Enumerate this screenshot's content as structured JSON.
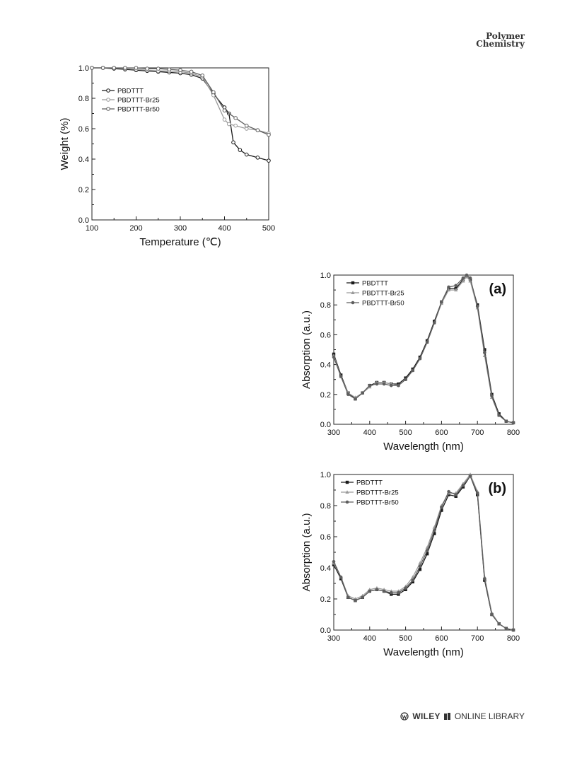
{
  "header": {
    "journal_line1": "Polymer",
    "journal_line2": "Chemistry"
  },
  "footer": {
    "wiley": "WILEY",
    "library": "ONLINE LIBRARY"
  },
  "colors": {
    "s1": "#1a1a1a",
    "s2": "#9a9a9a",
    "s3": "#5e5e5e"
  },
  "chart_data": [
    {
      "type": "line",
      "panel": "",
      "xlabel": "Temperature (℃)",
      "ylabel": "Weight (%)",
      "xlim": [
        100,
        500
      ],
      "ylim": [
        0.0,
        1.0
      ],
      "xticks": [
        "100",
        "200",
        "300",
        "400",
        "500"
      ],
      "yticks": [
        "0.0",
        "0.2",
        "0.4",
        "0.6",
        "0.8",
        "1.0"
      ],
      "legend_position": "upper-left",
      "marker": "open-circle",
      "series": [
        {
          "name": "PBDTTT",
          "x": [
            100,
            125,
            150,
            175,
            200,
            225,
            250,
            275,
            300,
            325,
            350,
            375,
            400,
            410,
            420,
            435,
            450,
            475,
            500
          ],
          "y": [
            1.0,
            1.0,
            0.995,
            0.99,
            0.985,
            0.98,
            0.975,
            0.97,
            0.965,
            0.955,
            0.93,
            0.83,
            0.74,
            0.7,
            0.51,
            0.46,
            0.43,
            0.41,
            0.39
          ]
        },
        {
          "name": "PBDTTT-Br25",
          "x": [
            100,
            125,
            150,
            175,
            200,
            225,
            250,
            275,
            300,
            325,
            350,
            375,
            400,
            410,
            425,
            450,
            475,
            500
          ],
          "y": [
            1.0,
            1.0,
            1.0,
            0.995,
            0.99,
            0.985,
            0.98,
            0.98,
            0.975,
            0.965,
            0.94,
            0.82,
            0.66,
            0.63,
            0.62,
            0.6,
            0.59,
            0.57
          ]
        },
        {
          "name": "PBDTTT-Br50",
          "x": [
            100,
            125,
            150,
            175,
            200,
            225,
            250,
            275,
            300,
            325,
            350,
            375,
            400,
            425,
            450,
            475,
            500
          ],
          "y": [
            1.0,
            1.0,
            1.0,
            1.0,
            1.0,
            0.995,
            0.995,
            0.99,
            0.985,
            0.975,
            0.95,
            0.84,
            0.72,
            0.67,
            0.62,
            0.59,
            0.56
          ]
        }
      ]
    },
    {
      "type": "line",
      "panel": "(a)",
      "xlabel": "Wavelength (nm)",
      "ylabel": "Absorption (a.u.)",
      "xlim": [
        300,
        800
      ],
      "ylim": [
        0.0,
        1.0
      ],
      "xticks": [
        "300",
        "400",
        "500",
        "600",
        "700",
        "800"
      ],
      "yticks": [
        "0.0",
        "0.2",
        "0.4",
        "0.6",
        "0.8",
        "1.0"
      ],
      "legend_position": "upper-left",
      "marker": "filled",
      "series": [
        {
          "name": "PBDTTT",
          "x": [
            300,
            320,
            340,
            360,
            380,
            400,
            420,
            440,
            460,
            480,
            500,
            520,
            540,
            560,
            580,
            600,
            620,
            640,
            660,
            670,
            680,
            700,
            720,
            740,
            760,
            780,
            800
          ],
          "y": [
            0.47,
            0.33,
            0.21,
            0.17,
            0.21,
            0.26,
            0.28,
            0.28,
            0.27,
            0.27,
            0.31,
            0.37,
            0.45,
            0.56,
            0.69,
            0.82,
            0.91,
            0.91,
            0.97,
            0.99,
            0.97,
            0.8,
            0.5,
            0.2,
            0.07,
            0.02,
            0.01
          ]
        },
        {
          "name": "PBDTTT-Br25",
          "x": [
            300,
            320,
            340,
            360,
            380,
            400,
            420,
            440,
            460,
            480,
            500,
            520,
            540,
            560,
            580,
            600,
            620,
            640,
            660,
            670,
            680,
            700,
            720,
            740,
            760,
            780,
            800
          ],
          "y": [
            0.46,
            0.32,
            0.21,
            0.18,
            0.21,
            0.25,
            0.28,
            0.28,
            0.27,
            0.26,
            0.3,
            0.36,
            0.44,
            0.55,
            0.68,
            0.81,
            0.9,
            0.9,
            0.96,
            0.99,
            0.96,
            0.78,
            0.46,
            0.18,
            0.06,
            0.02,
            0.01
          ]
        },
        {
          "name": "PBDTTT-Br50",
          "x": [
            300,
            320,
            340,
            360,
            380,
            400,
            420,
            440,
            460,
            480,
            500,
            520,
            540,
            560,
            580,
            600,
            620,
            640,
            660,
            670,
            680,
            700,
            720,
            740,
            760,
            780,
            800
          ],
          "y": [
            0.45,
            0.32,
            0.2,
            0.17,
            0.21,
            0.26,
            0.27,
            0.27,
            0.26,
            0.26,
            0.3,
            0.36,
            0.44,
            0.55,
            0.68,
            0.82,
            0.92,
            0.93,
            0.98,
            1.0,
            0.98,
            0.79,
            0.48,
            0.19,
            0.06,
            0.02,
            0.01
          ]
        }
      ]
    },
    {
      "type": "line",
      "panel": "(b)",
      "xlabel": "Wavelength (nm)",
      "ylabel": "Absorption (a.u.)",
      "xlim": [
        300,
        800
      ],
      "ylim": [
        0.0,
        1.0
      ],
      "xticks": [
        "300",
        "400",
        "500",
        "600",
        "700",
        "800"
      ],
      "yticks": [
        "0.0",
        "0.2",
        "0.4",
        "0.6",
        "0.8",
        "1.0"
      ],
      "legend_position": "upper-left",
      "marker": "filled",
      "series": [
        {
          "name": "PBDTTT",
          "x": [
            300,
            320,
            340,
            360,
            380,
            400,
            420,
            440,
            460,
            480,
            500,
            520,
            540,
            560,
            580,
            600,
            620,
            640,
            660,
            680,
            700,
            720,
            740,
            760,
            780,
            800
          ],
          "y": [
            0.42,
            0.33,
            0.21,
            0.19,
            0.21,
            0.25,
            0.26,
            0.25,
            0.23,
            0.23,
            0.26,
            0.31,
            0.39,
            0.49,
            0.62,
            0.77,
            0.87,
            0.86,
            0.92,
            0.99,
            0.87,
            0.32,
            0.1,
            0.04,
            0.01,
            0.0
          ]
        },
        {
          "name": "PBDTTT-Br25",
          "x": [
            300,
            320,
            340,
            360,
            380,
            400,
            420,
            440,
            460,
            480,
            500,
            520,
            540,
            560,
            580,
            600,
            620,
            640,
            660,
            680,
            700,
            720,
            740,
            760,
            780,
            800
          ],
          "y": [
            0.43,
            0.34,
            0.22,
            0.2,
            0.22,
            0.26,
            0.27,
            0.26,
            0.25,
            0.25,
            0.28,
            0.34,
            0.43,
            0.53,
            0.66,
            0.8,
            0.88,
            0.88,
            0.94,
            1.0,
            0.89,
            0.34,
            0.11,
            0.04,
            0.01,
            0.0
          ]
        },
        {
          "name": "PBDTTT-Br50",
          "x": [
            300,
            320,
            340,
            360,
            380,
            400,
            420,
            440,
            460,
            480,
            500,
            520,
            540,
            560,
            580,
            600,
            620,
            640,
            660,
            680,
            700,
            720,
            740,
            760,
            780,
            800
          ],
          "y": [
            0.44,
            0.34,
            0.21,
            0.19,
            0.21,
            0.25,
            0.26,
            0.25,
            0.24,
            0.24,
            0.27,
            0.32,
            0.41,
            0.51,
            0.64,
            0.79,
            0.89,
            0.87,
            0.93,
            0.99,
            0.88,
            0.33,
            0.1,
            0.04,
            0.01,
            0.0
          ]
        }
      ]
    }
  ]
}
